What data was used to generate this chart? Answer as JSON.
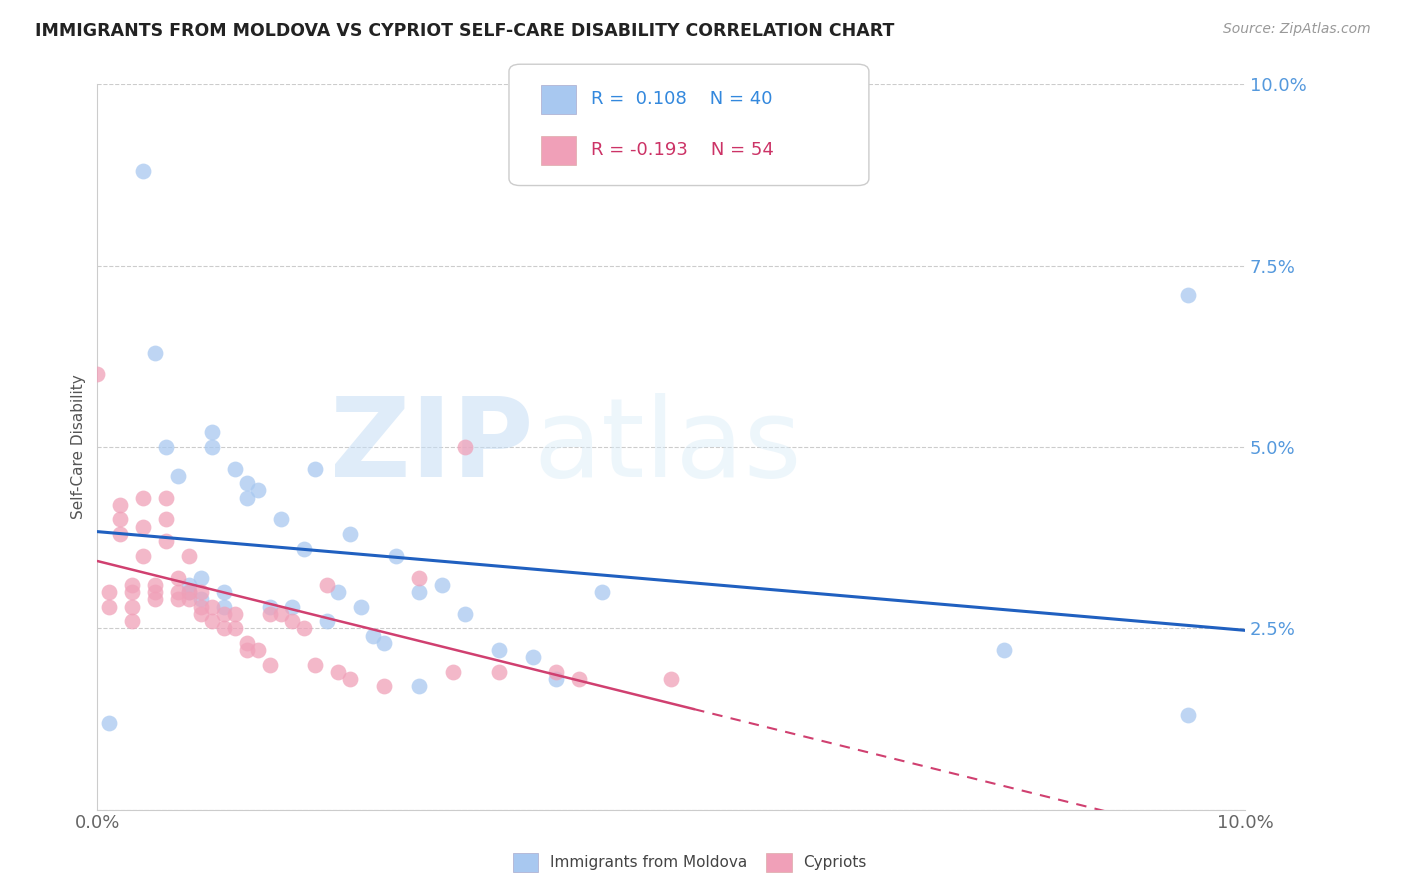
{
  "title": "IMMIGRANTS FROM MOLDOVA VS CYPRIOT SELF-CARE DISABILITY CORRELATION CHART",
  "source": "Source: ZipAtlas.com",
  "ylabel": "Self-Care Disability",
  "xlim": [
    0,
    0.1
  ],
  "ylim": [
    0,
    0.1
  ],
  "yticks": [
    0.0,
    0.025,
    0.05,
    0.075,
    0.1
  ],
  "ytick_labels": [
    "",
    "2.5%",
    "5.0%",
    "7.5%",
    "10.0%"
  ],
  "series1_label": "Immigrants from Moldova",
  "series1_color": "#a8c8f0",
  "series1_R": "0.108",
  "series1_N": "40",
  "series2_label": "Cypriots",
  "series2_color": "#f0a0b8",
  "series2_R": "-0.193",
  "series2_N": "54",
  "watermark_zip": "ZIP",
  "watermark_atlas": "atlas",
  "blue_line_color": "#2060c0",
  "pink_line_color": "#d04070",
  "series1_x": [
    0.001,
    0.004,
    0.005,
    0.006,
    0.007,
    0.008,
    0.008,
    0.009,
    0.009,
    0.01,
    0.01,
    0.011,
    0.011,
    0.012,
    0.013,
    0.013,
    0.014,
    0.015,
    0.016,
    0.017,
    0.018,
    0.019,
    0.02,
    0.021,
    0.022,
    0.023,
    0.024,
    0.025,
    0.026,
    0.028,
    0.03,
    0.032,
    0.035,
    0.038,
    0.04,
    0.044,
    0.028,
    0.079,
    0.095,
    0.095
  ],
  "series1_y": [
    0.012,
    0.088,
    0.063,
    0.05,
    0.046,
    0.03,
    0.031,
    0.029,
    0.032,
    0.052,
    0.05,
    0.028,
    0.03,
    0.047,
    0.043,
    0.045,
    0.044,
    0.028,
    0.04,
    0.028,
    0.036,
    0.047,
    0.026,
    0.03,
    0.038,
    0.028,
    0.024,
    0.023,
    0.035,
    0.017,
    0.031,
    0.027,
    0.022,
    0.021,
    0.018,
    0.03,
    0.03,
    0.022,
    0.071,
    0.013
  ],
  "series2_x": [
    0.0,
    0.001,
    0.001,
    0.002,
    0.002,
    0.002,
    0.003,
    0.003,
    0.003,
    0.003,
    0.004,
    0.004,
    0.004,
    0.005,
    0.005,
    0.005,
    0.006,
    0.006,
    0.006,
    0.007,
    0.007,
    0.007,
    0.008,
    0.008,
    0.008,
    0.009,
    0.009,
    0.009,
    0.01,
    0.01,
    0.011,
    0.011,
    0.012,
    0.012,
    0.013,
    0.013,
    0.014,
    0.015,
    0.015,
    0.016,
    0.017,
    0.018,
    0.019,
    0.02,
    0.021,
    0.022,
    0.025,
    0.028,
    0.031,
    0.032,
    0.035,
    0.04,
    0.042,
    0.05
  ],
  "series2_y": [
    0.06,
    0.03,
    0.028,
    0.038,
    0.04,
    0.042,
    0.028,
    0.03,
    0.031,
    0.026,
    0.043,
    0.039,
    0.035,
    0.03,
    0.031,
    0.029,
    0.043,
    0.04,
    0.037,
    0.03,
    0.029,
    0.032,
    0.035,
    0.03,
    0.029,
    0.028,
    0.027,
    0.03,
    0.028,
    0.026,
    0.027,
    0.025,
    0.027,
    0.025,
    0.023,
    0.022,
    0.022,
    0.02,
    0.027,
    0.027,
    0.026,
    0.025,
    0.02,
    0.031,
    0.019,
    0.018,
    0.017,
    0.032,
    0.019,
    0.05,
    0.019,
    0.019,
    0.018,
    0.018
  ]
}
